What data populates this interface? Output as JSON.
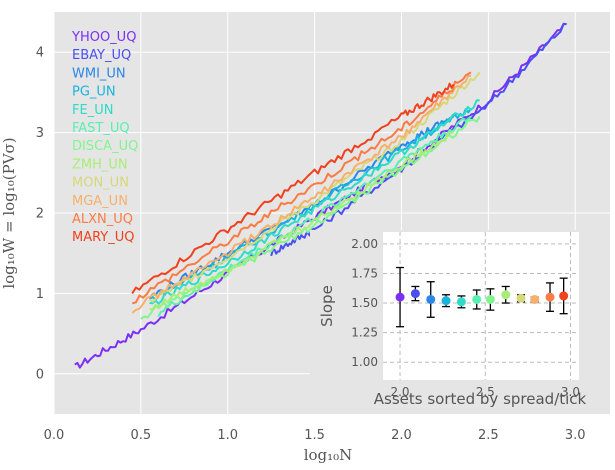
{
  "chart_data": [
    {
      "type": "line",
      "title": "",
      "xlabel": "log₁₀N",
      "ylabel": "log₁₀W = log₁₀(PVσ)",
      "xlim": [
        0.0,
        3.2
      ],
      "ylim": [
        -0.5,
        4.5
      ],
      "xticks": [
        "0.0",
        "0.5",
        "1.0",
        "1.5",
        "2.0",
        "2.5",
        "3.0"
      ],
      "yticks": [
        "0",
        "1",
        "2",
        "3",
        "4"
      ],
      "grid": true,
      "legend_position": "top-left",
      "series": [
        {
          "name": "YHOO_UQ",
          "color": "#7b2ff7",
          "x": [
            0.12,
            0.5,
            1.0,
            1.5,
            2.0,
            2.5,
            2.95
          ],
          "y": [
            0.08,
            0.55,
            1.25,
            1.95,
            2.6,
            3.4,
            4.35
          ]
        },
        {
          "name": "EBAY_UQ",
          "color": "#4b4ef2",
          "x": [
            1.25,
            1.5,
            2.0,
            2.5,
            2.95
          ],
          "y": [
            1.5,
            1.8,
            2.55,
            3.35,
            4.35
          ]
        },
        {
          "name": "WMI_UN",
          "color": "#2a86e8",
          "x": [
            0.55,
            1.0,
            1.5,
            2.0,
            2.3
          ],
          "y": [
            0.95,
            1.5,
            2.1,
            2.85,
            3.2
          ]
        },
        {
          "name": "PG_UN",
          "color": "#18b4de",
          "x": [
            0.55,
            1.0,
            1.5,
            2.0,
            2.4
          ],
          "y": [
            0.92,
            1.45,
            2.1,
            2.8,
            3.3
          ]
        },
        {
          "name": "FE_UN",
          "color": "#2cdcc9",
          "x": [
            0.55,
            1.0,
            1.5,
            2.0,
            2.45
          ],
          "y": [
            0.85,
            1.38,
            2.05,
            2.75,
            3.4
          ]
        },
        {
          "name": "FAST_UQ",
          "color": "#57f0b0",
          "x": [
            0.6,
            1.0,
            1.5,
            2.0,
            2.4
          ],
          "y": [
            0.75,
            1.3,
            1.95,
            2.65,
            3.2
          ]
        },
        {
          "name": "DISCA_UQ",
          "color": "#80f58e",
          "x": [
            0.5,
            1.0,
            1.5,
            2.0,
            2.45
          ],
          "y": [
            0.7,
            1.25,
            1.85,
            2.55,
            3.2
          ]
        },
        {
          "name": "ZMH_UN",
          "color": "#a7ee77",
          "x": [
            0.55,
            1.0,
            1.5,
            2.0,
            2.3
          ],
          "y": [
            0.8,
            1.3,
            1.9,
            2.6,
            3.0
          ]
        },
        {
          "name": "MON_UN",
          "color": "#d6d87a",
          "x": [
            0.55,
            1.0,
            1.5,
            2.0,
            2.45
          ],
          "y": [
            0.9,
            1.45,
            2.15,
            2.9,
            3.75
          ]
        },
        {
          "name": "MGA_UN",
          "color": "#f7b06a",
          "x": [
            0.45,
            1.0,
            1.5,
            2.0,
            2.4
          ],
          "y": [
            0.8,
            1.5,
            2.2,
            2.95,
            3.7
          ]
        },
        {
          "name": "ALXN_UQ",
          "color": "#fb7b45",
          "x": [
            0.45,
            1.0,
            1.5,
            2.0,
            2.4
          ],
          "y": [
            0.9,
            1.65,
            2.35,
            3.05,
            3.75
          ]
        },
        {
          "name": "MARY_UQ",
          "color": "#f0401c",
          "x": [
            0.45,
            1.0,
            1.5,
            2.0,
            2.3
          ],
          "y": [
            1.0,
            1.8,
            2.5,
            3.2,
            3.6
          ]
        }
      ]
    },
    {
      "type": "scatter",
      "title": "",
      "xlabel": "Assets sorted by spread/tick",
      "ylabel": "Slope",
      "xlim": [
        1.9,
        3.05
      ],
      "ylim": [
        0.85,
        2.1
      ],
      "xticks": [
        "2.0",
        "2.5",
        "3.0"
      ],
      "yticks": [
        "1.00",
        "1.25",
        "1.50",
        "1.75",
        "2.00"
      ],
      "grid": true,
      "points": [
        {
          "name": "YHOO_UQ",
          "color": "#7b2ff7",
          "x": 2.0,
          "y": 1.55,
          "err": 0.25
        },
        {
          "name": "EBAY_UQ",
          "color": "#4b4ef2",
          "x": 2.09,
          "y": 1.58,
          "err": 0.06
        },
        {
          "name": "WMI_UN",
          "color": "#2a86e8",
          "x": 2.18,
          "y": 1.53,
          "err": 0.15
        },
        {
          "name": "PG_UN",
          "color": "#18b4de",
          "x": 2.27,
          "y": 1.52,
          "err": 0.05
        },
        {
          "name": "FE_UN",
          "color": "#2cdcc9",
          "x": 2.36,
          "y": 1.51,
          "err": 0.05
        },
        {
          "name": "FAST_UQ",
          "color": "#57f0b0",
          "x": 2.45,
          "y": 1.53,
          "err": 0.08
        },
        {
          "name": "DISCA_UQ",
          "color": "#80f58e",
          "x": 2.53,
          "y": 1.53,
          "err": 0.09
        },
        {
          "name": "ZMH_UN",
          "color": "#a7ee77",
          "x": 2.62,
          "y": 1.57,
          "err": 0.07
        },
        {
          "name": "MON_UN",
          "color": "#d6d87a",
          "x": 2.71,
          "y": 1.54,
          "err": 0.03
        },
        {
          "name": "MGA_UN",
          "color": "#f7b06a",
          "x": 2.79,
          "y": 1.53,
          "err": 0.02
        },
        {
          "name": "ALXN_UQ",
          "color": "#fb7b45",
          "x": 2.88,
          "y": 1.55,
          "err": 0.12
        },
        {
          "name": "MARY_UQ",
          "color": "#f0401c",
          "x": 2.96,
          "y": 1.56,
          "err": 0.15
        }
      ]
    }
  ]
}
